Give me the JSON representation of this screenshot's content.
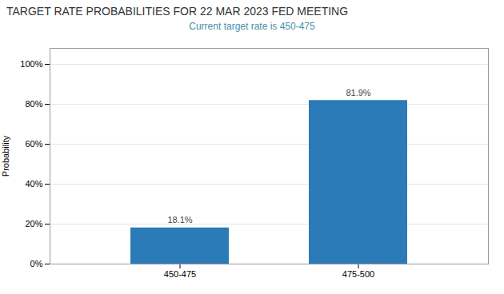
{
  "chart_data": {
    "type": "bar",
    "title": "TARGET RATE PROBABILITIES FOR 22 MAR 2023 FED MEETING",
    "subtitle": "Current target rate is 450-475",
    "categories": [
      "450-475",
      "475-500"
    ],
    "values": [
      18.1,
      81.9
    ],
    "value_labels": [
      "18.1%",
      "81.9%"
    ],
    "data_labels": true,
    "color": "#2B7BB9",
    "ylabel": "Probability",
    "ylim": [
      0,
      108
    ],
    "yticks": [
      {
        "value": 0,
        "label": "0%"
      },
      {
        "value": 20,
        "label": "20%"
      },
      {
        "value": 40,
        "label": "40%"
      },
      {
        "value": 60,
        "label": "60%"
      },
      {
        "value": 80,
        "label": "80%"
      },
      {
        "value": 100,
        "label": "100%"
      }
    ],
    "grid": true
  }
}
